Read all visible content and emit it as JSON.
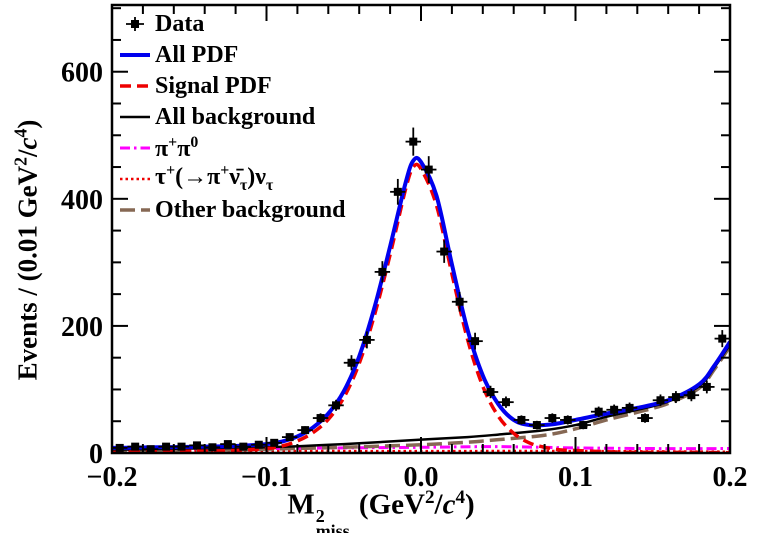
{
  "figure": {
    "background": "#ffffff"
  },
  "legend": {
    "position": "top-left-inside",
    "items": [
      {
        "id": "data",
        "label": "Data",
        "type": "marker",
        "style": "square-with-errors",
        "color": "#000000"
      },
      {
        "id": "all-pdf",
        "label": "All PDF",
        "type": "line",
        "style": "solid",
        "color": "#0000ee",
        "width": 4
      },
      {
        "id": "signal-pdf",
        "label": "Signal PDF",
        "type": "line",
        "style": "dashed",
        "color": "#ee0000",
        "width": 3.5
      },
      {
        "id": "all-background",
        "label": "All background",
        "type": "line",
        "style": "solid",
        "color": "#000000",
        "width": 2.5
      },
      {
        "id": "pi-pi0",
        "label": "π^{+}π^{0}",
        "type": "line",
        "style": "dashdot",
        "color": "#ff00ff",
        "width": 3
      },
      {
        "id": "tau-nu",
        "label": "τ^{+}(→π^{+}ν̄_{τ})ν_{τ}",
        "type": "line",
        "style": "dotted",
        "color": "#ee0000",
        "width": 2.5
      },
      {
        "id": "other-background",
        "label": "Other background",
        "type": "line",
        "style": "longdash",
        "color": "#866854",
        "width": 3.5
      }
    ]
  },
  "chart_data": {
    "type": "line",
    "title": "",
    "xlabel": "M^{2}_{miss} (GeV^{2}/*c*^{4})",
    "ylabel": "Events / (0.01 GeV^{2}/*c*^{4})",
    "xlim": [
      -0.2,
      0.2
    ],
    "ylim": [
      0,
      705
    ],
    "x_major_ticks": [
      -0.2,
      -0.1,
      0.0,
      0.1,
      0.2
    ],
    "x_tick_labels": [
      "−0.2",
      "−0.1",
      "0.0",
      "0.1",
      "0.2"
    ],
    "x_minor_step": 0.02,
    "y_major_ticks": [
      0,
      200,
      400,
      600
    ],
    "y_tick_labels": [
      "0",
      "200",
      "400",
      "600"
    ],
    "y_minor_step": 50,
    "grid": false,
    "bin_width": 0.01,
    "data_points": {
      "name": "Data",
      "marker": "filled-square",
      "color": "#000000",
      "x": [
        -0.195,
        -0.185,
        -0.175,
        -0.165,
        -0.155,
        -0.145,
        -0.135,
        -0.125,
        -0.115,
        -0.105,
        -0.095,
        -0.085,
        -0.075,
        -0.065,
        -0.055,
        -0.045,
        -0.035,
        -0.025,
        -0.015,
        -0.005,
        0.005,
        0.015,
        0.025,
        0.035,
        0.045,
        0.055,
        0.065,
        0.075,
        0.085,
        0.095,
        0.105,
        0.115,
        0.125,
        0.135,
        0.145,
        0.155,
        0.165,
        0.175,
        0.185,
        0.195
      ],
      "y": [
        8,
        10,
        6,
        10,
        10,
        12,
        9,
        14,
        10,
        13,
        16,
        25,
        36,
        55,
        75,
        142,
        178,
        285,
        411,
        490,
        446,
        317,
        238,
        176,
        96,
        80,
        52,
        44,
        55,
        52,
        44,
        65,
        68,
        71,
        55,
        83,
        88,
        91,
        104,
        180
      ]
    },
    "series": [
      {
        "id": "pi-pi0",
        "name": "π+π0 background",
        "color": "#ff00ff",
        "style": "dashdot",
        "width": 3,
        "x": [
          -0.2,
          -0.15,
          -0.1,
          -0.05,
          0.0,
          0.05,
          0.1,
          0.15,
          0.2
        ],
        "y": [
          6,
          6,
          7,
          8,
          9,
          10,
          8,
          7,
          7
        ]
      },
      {
        "id": "tau-nu",
        "name": "tau nu background",
        "color": "#ee0000",
        "style": "dotted",
        "width": 2.5,
        "x": [
          -0.2,
          -0.1,
          0.0,
          0.1,
          0.2
        ],
        "y": [
          2,
          3,
          3,
          3,
          2
        ]
      },
      {
        "id": "other-background",
        "name": "Other background",
        "color": "#866854",
        "style": "longdash",
        "width": 3.5,
        "x": [
          -0.2,
          -0.15,
          -0.1,
          -0.05,
          0.0,
          0.03,
          0.05,
          0.08,
          0.1,
          0.12,
          0.14,
          0.16,
          0.18,
          0.19,
          0.2
        ],
        "y": [
          3,
          4,
          6,
          9,
          13,
          17,
          21,
          28,
          38,
          52,
          64,
          78,
          102,
          132,
          168
        ]
      },
      {
        "id": "all-background",
        "name": "All background",
        "color": "#000000",
        "style": "solid",
        "width": 2.5,
        "x": [
          -0.2,
          -0.15,
          -0.1,
          -0.05,
          0.0,
          0.03,
          0.05,
          0.08,
          0.1,
          0.12,
          0.14,
          0.16,
          0.18,
          0.19,
          0.2
        ],
        "y": [
          5,
          7,
          9,
          14,
          21,
          25,
          29,
          36,
          44,
          57,
          68,
          81,
          105,
          135,
          171
        ]
      },
      {
        "id": "signal-pdf",
        "name": "Signal PDF",
        "color": "#ee0000",
        "style": "dashed",
        "width": 3.5,
        "x": [
          -0.2,
          -0.17,
          -0.14,
          -0.12,
          -0.1,
          -0.09,
          -0.08,
          -0.07,
          -0.06,
          -0.05,
          -0.04,
          -0.03,
          -0.02,
          -0.01,
          -0.005,
          0.0,
          0.01,
          0.02,
          0.03,
          0.04,
          0.05,
          0.06,
          0.07,
          0.08,
          0.09,
          0.1,
          0.12,
          0.14,
          0.16,
          0.18,
          0.19,
          0.2
        ],
        "y": [
          1,
          2,
          3,
          4,
          7,
          11,
          19,
          32,
          53,
          87,
          141,
          218,
          312,
          415,
          450,
          447,
          390,
          282,
          180,
          105,
          58,
          31,
          16,
          9,
          5,
          4,
          2,
          1,
          1,
          1,
          0.5,
          0.5
        ]
      },
      {
        "id": "all-pdf",
        "name": "All PDF",
        "color": "#0000ee",
        "style": "solid",
        "width": 4,
        "x": [
          -0.2,
          -0.17,
          -0.14,
          -0.12,
          -0.1,
          -0.09,
          -0.08,
          -0.07,
          -0.06,
          -0.05,
          -0.04,
          -0.03,
          -0.02,
          -0.01,
          -0.005,
          0.0,
          0.01,
          0.02,
          0.03,
          0.04,
          0.05,
          0.06,
          0.07,
          0.08,
          0.09,
          0.1,
          0.12,
          0.14,
          0.16,
          0.18,
          0.19,
          0.2
        ],
        "y": [
          8,
          9,
          10,
          11,
          14,
          18,
          26,
          40,
          62,
          97,
          152,
          230,
          325,
          425,
          460,
          458,
          405,
          297,
          195,
          122,
          77,
          52,
          44,
          44,
          47,
          52,
          62,
          71,
          83,
          108,
          138,
          175
        ]
      }
    ]
  }
}
